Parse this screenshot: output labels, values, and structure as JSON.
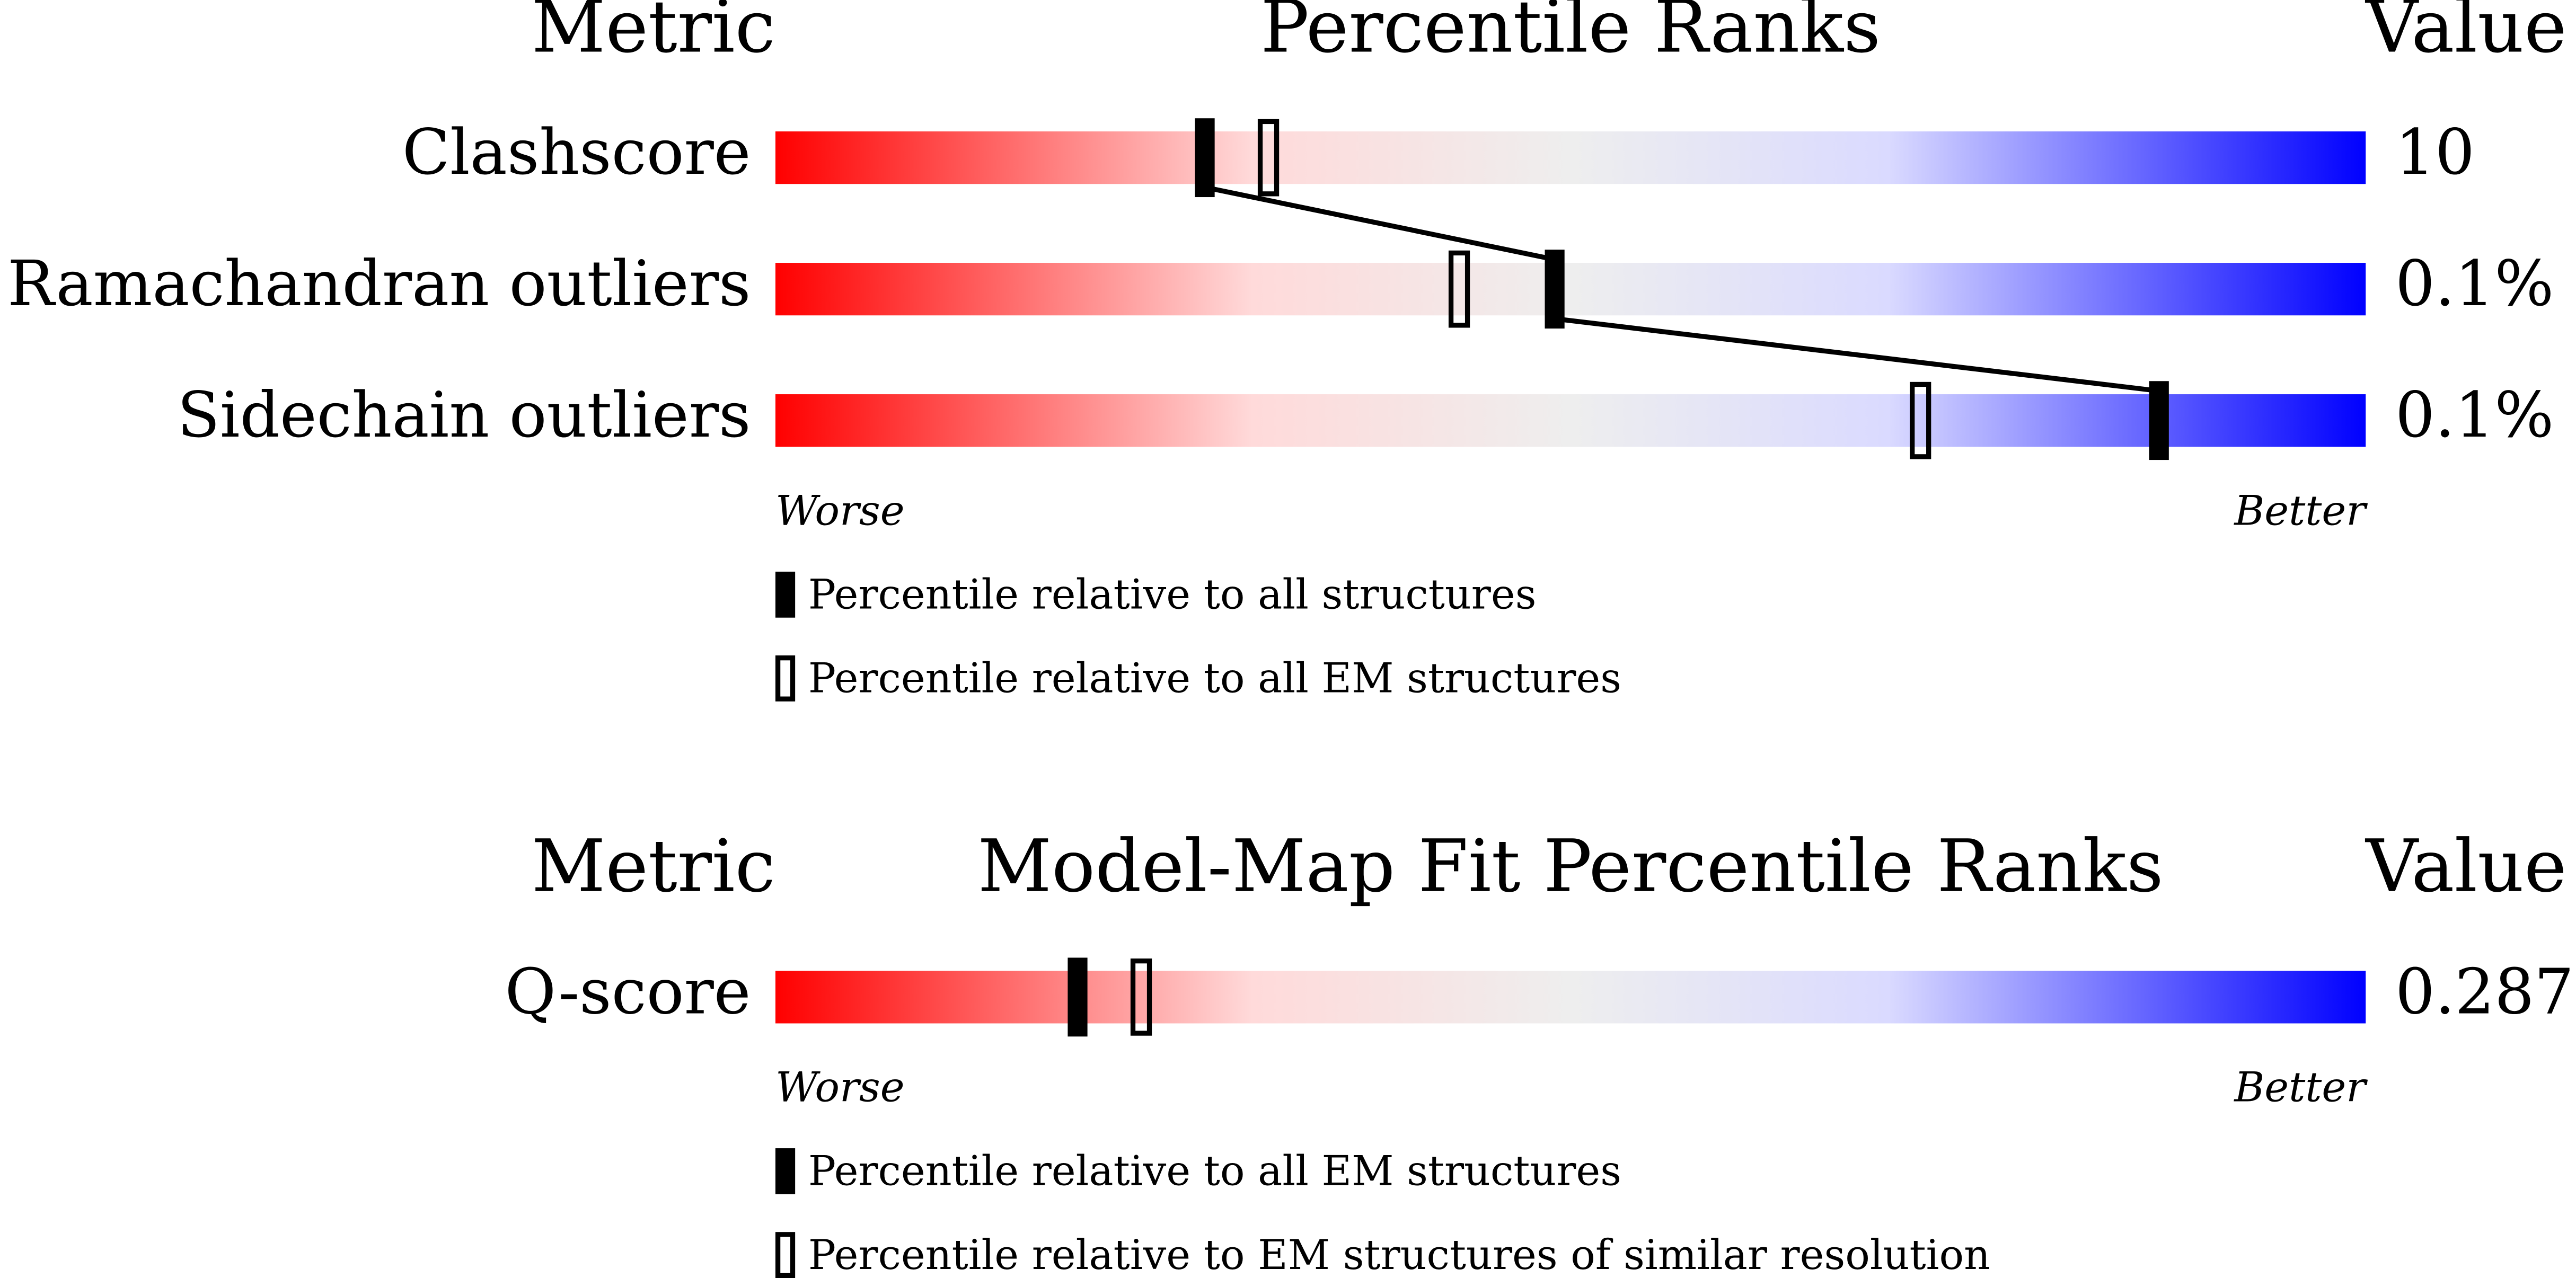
{
  "panels": [
    {
      "header": {
        "metric": "Metric",
        "title": "Percentile Ranks",
        "value": "Value"
      },
      "rows": [
        {
          "metric": "Clashscore",
          "value": "10",
          "percentile_all": 27,
          "percentile_em": 31
        },
        {
          "metric": "Ramachandran outliers",
          "value": "0.1%",
          "percentile_all": 49,
          "percentile_em": 43
        },
        {
          "metric": "Sidechain outliers",
          "value": "0.1%",
          "percentile_all": 87,
          "percentile_em": 72
        }
      ],
      "worse": "Worse",
      "better": "Better",
      "legend": [
        "Percentile relative to all structures",
        "Percentile relative to all EM structures"
      ]
    },
    {
      "header": {
        "metric": "Metric",
        "title": "Model-Map Fit Percentile Ranks",
        "value": "Value"
      },
      "rows": [
        {
          "metric": "Q-score",
          "value": "0.287",
          "percentile_all": 19,
          "percentile_em": 23
        }
      ],
      "worse": "Worse",
      "better": "Better",
      "legend": [
        "Percentile relative to all EM structures",
        "Percentile relative to EM structures of similar resolution"
      ]
    }
  ]
}
